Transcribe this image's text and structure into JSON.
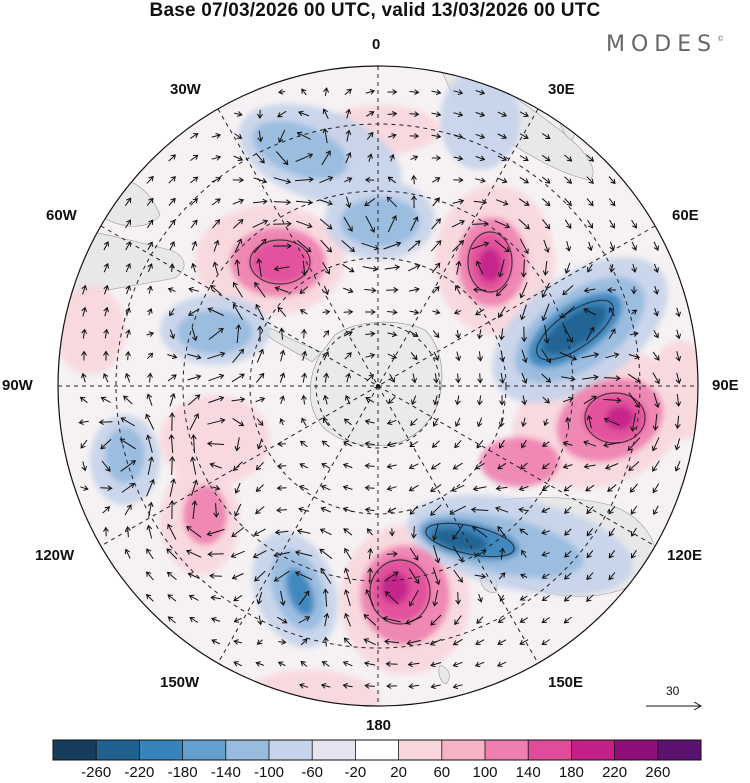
{
  "title": "Base 07/03/2026 00 UTC, valid 13/03/2026 00 UTC",
  "brand": "MODES",
  "brand_mark": "©",
  "longitude_labels": {
    "lon_0": "0",
    "lon_30e": "30E",
    "lon_60e": "60E",
    "lon_90e": "90E",
    "lon_120e": "120E",
    "lon_150e": "150E",
    "lon_180": "180",
    "lon_150w": "150W",
    "lon_120w": "120W",
    "lon_90w": "90W",
    "lon_60w": "60W",
    "lon_30w": "30W"
  },
  "vector_scale": {
    "label": "30"
  },
  "legend": {
    "labels": [
      "-260",
      "-220",
      "-180",
      "-140",
      "-100",
      "-60",
      "-20",
      "20",
      "60",
      "100",
      "140",
      "180",
      "220",
      "260"
    ],
    "colors": [
      "#163d5e",
      "#1f6190",
      "#3784bc",
      "#64a0cf",
      "#97bcdf",
      "#c6d3ea",
      "#e6e4f1",
      "#ffffff",
      "#f9d6dc",
      "#f6b3c5",
      "#ef7fb0",
      "#e14c9a",
      "#c3208a",
      "#8f0f79",
      "#5a1170"
    ]
  },
  "colors": {
    "land": "#e8e8e8",
    "grid": "#222222",
    "arrow": "#111111"
  }
}
